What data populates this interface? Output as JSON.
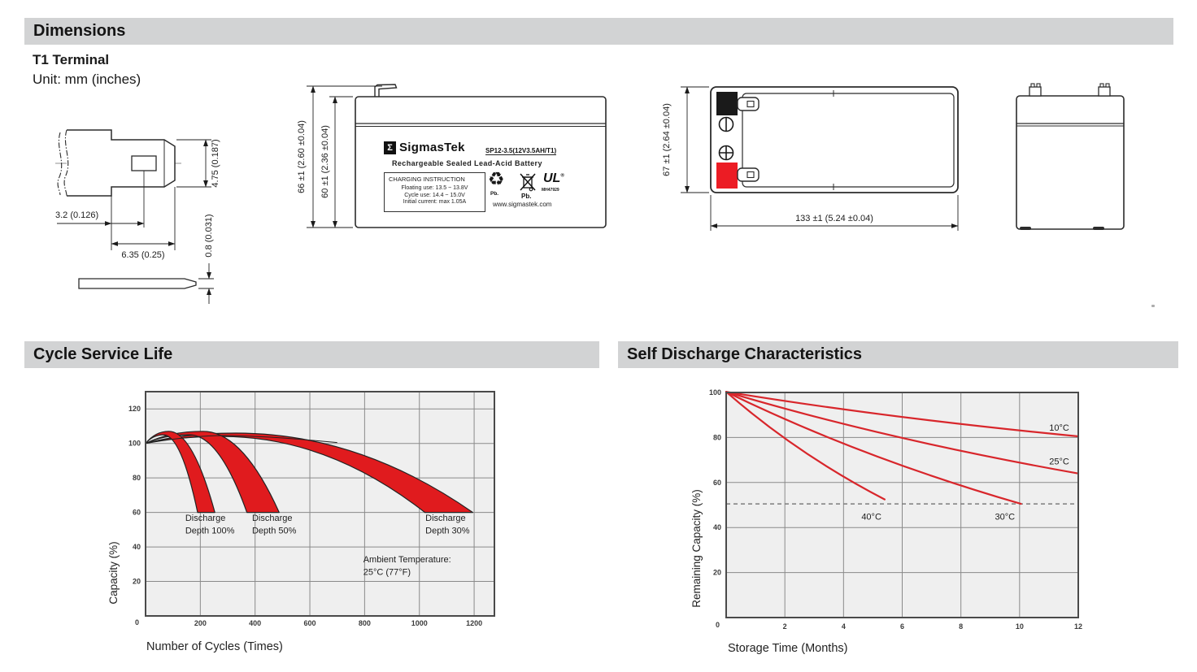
{
  "sections": {
    "dimensions": "Dimensions",
    "cycle_service_life": "Cycle Service Life",
    "self_discharge": "Self Discharge Characteristics"
  },
  "terminal": {
    "title": "T1 Terminal",
    "unit": "Unit: mm (inches)",
    "dims": {
      "height": "4.75 (0.187)",
      "offset": "3.2 (0.126)",
      "width": "6.35 (0.25)",
      "thickness": "0.8 (0.031)"
    }
  },
  "front_view": {
    "dim_outer": "66 ±1 (2.60 ±0.04)",
    "dim_inner": "60 ±1 (2.36 ±0.04)",
    "label": {
      "sigma": "Σ",
      "brand": "SigmasTek",
      "model": "SP12-3.5(12V3.5AH/T1)",
      "subtitle": "Rechargeable Sealed Lead-Acid Battery",
      "charging_title": "CHARGING INSTRUCTION",
      "charging_line1": "Floating use: 13.5 ~ 13.8V",
      "charging_line2": "Cycle use: 14.4 ~ 15.0V",
      "charging_line3": "Initial current: max 1.05A",
      "pb_recycle": "Pb.",
      "pb_bin": "Pb.",
      "ul_text": "UL",
      "ul_reg": "®",
      "ul_code": "MH47929",
      "recycle_glyph": "♻",
      "website": "www.sigmastek.com"
    }
  },
  "top_view": {
    "dim_height": "67 ±1 (2.64 ±0.04)",
    "dim_width": "133 ±1 (5.24 ±0.04)"
  },
  "colors": {
    "section_bar": "#d2d3d4",
    "chart_bg": "#efefef",
    "grid_line": "#8a8a8a",
    "frame": "#4a4a4a",
    "band_red": "#e01b1e",
    "line_red": "#d8262b",
    "terminal_red": "#ec1c24",
    "terminal_black": "#1a1a1a"
  },
  "chart_data": [
    {
      "type": "area",
      "title": "Cycle Service Life",
      "xlabel": "Number of Cycles (Times)",
      "ylabel": "Capacity (%)",
      "xlim": [
        0,
        1274
      ],
      "ylim": [
        0,
        130
      ],
      "xticks": [
        0,
        200,
        400,
        600,
        800,
        1000,
        1200
      ],
      "yticks": [
        0,
        20,
        40,
        60,
        80,
        100,
        120
      ],
      "grid": true,
      "legend_position": "none",
      "background": "#efefef",
      "band_color": "#e01b1e",
      "bands": [
        {
          "name": "Discharge Depth 100%",
          "lower": [
            [
              0,
              100
            ],
            [
              65,
              105
            ],
            [
              190,
              60
            ]
          ],
          "upper": [
            [
              0,
              100
            ],
            [
              85,
              107
            ],
            [
              253,
              60
            ]
          ]
        },
        {
          "name": "Discharge Depth 50%",
          "lower": [
            [
              0,
              100
            ],
            [
              160,
              105
            ],
            [
              370,
              60
            ]
          ],
          "upper": [
            [
              0,
              100
            ],
            [
              210,
              107
            ],
            [
              488,
              60
            ]
          ]
        },
        {
          "name": "Discharge Depth 30%",
          "lower": [
            [
              0,
              100
            ],
            [
              280,
              104
            ],
            [
              1020,
              60
            ]
          ],
          "upper": [
            [
              0,
              100
            ],
            [
              330,
              106
            ],
            [
              1195,
              60
            ]
          ]
        }
      ],
      "envelope": [
        [
          0,
          100
        ],
        [
          180,
          105
        ],
        [
          450,
          104
        ],
        [
          700,
          100.5
        ]
      ],
      "annotations": [
        {
          "lines": [
            "Discharge",
            "Depth 100%"
          ],
          "x": 145,
          "y": 57
        },
        {
          "lines": [
            "Discharge",
            "Depth 50%"
          ],
          "x": 389,
          "y": 57
        },
        {
          "lines": [
            "Discharge",
            "Depth 30%"
          ],
          "x": 1022,
          "y": 57
        },
        {
          "lines": [
            "Ambient Temperature:",
            "25°C (77°F)"
          ],
          "x": 795,
          "y": 33
        }
      ]
    },
    {
      "type": "line",
      "title": "Self Discharge Characteristics",
      "xlabel": "Storage Time (Months)",
      "ylabel": "Remaining Capacity (%)",
      "xlim": [
        0,
        12
      ],
      "ylim": [
        0,
        100
      ],
      "xticks": [
        0,
        2,
        4,
        6,
        8,
        10,
        12
      ],
      "yticks": [
        0,
        20,
        40,
        60,
        80,
        100
      ],
      "grid": true,
      "legend_position": "inline-labels",
      "background": "#efefef",
      "line_color": "#d8262b",
      "dashed_line_y": 50.5,
      "series": [
        {
          "name": "10°C",
          "start": [
            0,
            100.3
          ],
          "end": [
            12,
            80.5
          ],
          "label": [
            11.35,
            84.5
          ]
        },
        {
          "name": "25°C",
          "start": [
            0,
            100.3
          ],
          "end": [
            12,
            64
          ],
          "label": [
            11.35,
            69.5
          ]
        },
        {
          "name": "30°C",
          "start": [
            0,
            100.3
          ],
          "end": [
            10.05,
            50.5
          ],
          "label": [
            9.5,
            45
          ]
        },
        {
          "name": "40°C",
          "start": [
            0,
            100.3
          ],
          "end": [
            5.4,
            52.5
          ],
          "label": [
            4.95,
            45
          ]
        }
      ]
    }
  ]
}
